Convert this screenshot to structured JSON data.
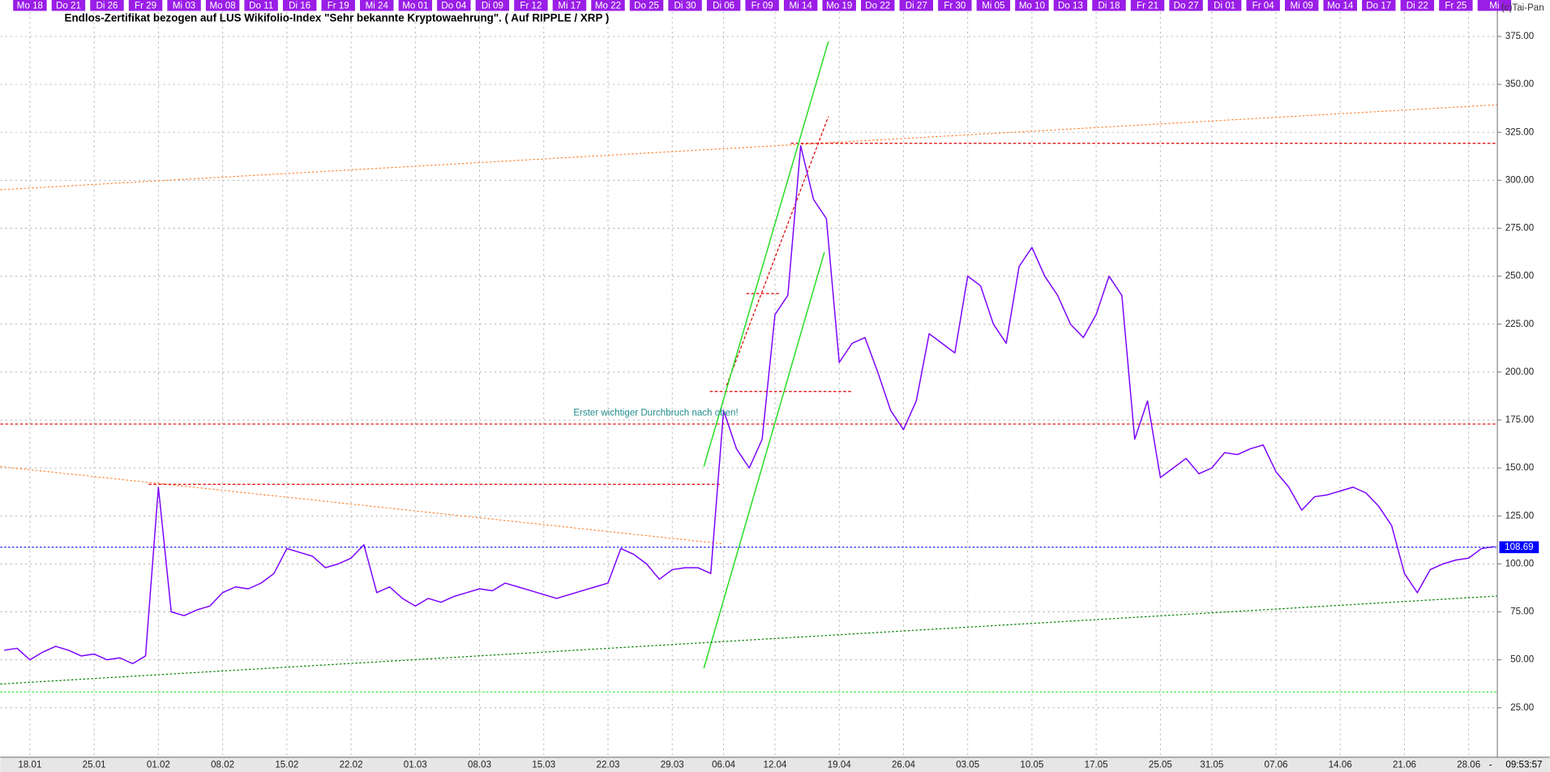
{
  "chart_data": {
    "type": "line",
    "title": "Endlos-Zertifikat bezogen auf LUS Wikifolio-Index \"Sehr bekannte Kryptowaehrung\". ( Auf RIPPLE / XRP )",
    "annotation": "Erster wichtiger Durchbruch nach oben!",
    "copyright": "(c)Tai-Pan",
    "clock_separator": "-",
    "clock": "09:53:57",
    "color": "#7b00ff",
    "grid": true,
    "ylim": [
      0,
      394
    ],
    "yticks": [
      {
        "value": 25,
        "label": "25.00"
      },
      {
        "value": 50,
        "label": "50.00"
      },
      {
        "value": 75,
        "label": "75.00"
      },
      {
        "value": 100,
        "label": "100.00"
      },
      {
        "value": 125,
        "label": "125.00"
      },
      {
        "value": 150,
        "label": "150.00"
      },
      {
        "value": 175,
        "label": "175.00"
      },
      {
        "value": 200,
        "label": "200.00"
      },
      {
        "value": 225,
        "label": "225.00"
      },
      {
        "value": 250,
        "label": "250.00"
      },
      {
        "value": 275,
        "label": "275.00"
      },
      {
        "value": 300,
        "label": "300.00"
      },
      {
        "value": 325,
        "label": "325.00"
      },
      {
        "value": 350,
        "label": "350.00"
      },
      {
        "value": 375,
        "label": "375.00"
      }
    ],
    "last_value": 108.69,
    "last_value_color": "#0000ff",
    "categories": [
      null,
      null,
      "18.01",
      null,
      null,
      null,
      null,
      "25.01",
      null,
      null,
      null,
      null,
      "01.02",
      null,
      null,
      null,
      null,
      "08.02",
      null,
      null,
      null,
      null,
      "15.02",
      null,
      null,
      null,
      null,
      "22.02",
      null,
      null,
      null,
      null,
      "01.03",
      null,
      null,
      null,
      null,
      "08.03",
      null,
      null,
      null,
      null,
      "15.03",
      null,
      null,
      null,
      null,
      "22.03",
      null,
      null,
      null,
      null,
      "29.03",
      null,
      null,
      null,
      "06.04",
      null,
      null,
      null,
      "12.04",
      null,
      null,
      null,
      null,
      "19.04",
      null,
      null,
      null,
      null,
      "26.04",
      null,
      null,
      null,
      null,
      "03.05",
      null,
      null,
      null,
      null,
      "10.05",
      null,
      null,
      null,
      null,
      "17.05",
      null,
      null,
      null,
      null,
      "25.05",
      null,
      null,
      null,
      "31.05",
      null,
      null,
      null,
      null,
      "07.06",
      null,
      null,
      null,
      null,
      "14.06",
      null,
      null,
      null,
      null,
      "21.06",
      null,
      null,
      null,
      null,
      "28.06",
      null,
      null
    ],
    "top_labels": [
      null,
      null,
      "Mo 18",
      null,
      null,
      "Do 21",
      null,
      null,
      "Di 26",
      null,
      null,
      "Fr 29",
      null,
      null,
      "Mi 03",
      null,
      null,
      "Mo 08",
      null,
      null,
      "Do 11",
      null,
      null,
      "Di 16",
      null,
      null,
      "Fr 19",
      null,
      null,
      "Mi 24",
      null,
      null,
      "Mo 01",
      null,
      null,
      "Do 04",
      null,
      null,
      "Di 09",
      null,
      null,
      "Fr 12",
      null,
      null,
      "Mi 17",
      null,
      null,
      "Mo 22",
      null,
      null,
      "Do 25",
      null,
      null,
      "Di 30",
      null,
      null,
      "Di 06",
      null,
      null,
      "Fr 09",
      null,
      null,
      "Mi 14",
      null,
      null,
      "Mo 19",
      null,
      null,
      "Do 22",
      null,
      null,
      "Di 27",
      null,
      null,
      "Fr 30",
      null,
      null,
      "Mi 05",
      null,
      null,
      "Mo 10",
      null,
      null,
      "Do 13",
      null,
      null,
      "Di 18",
      null,
      null,
      "Fr 21",
      null,
      null,
      "Do 27",
      null,
      null,
      "Di 01",
      null,
      null,
      "Fr 04",
      null,
      null,
      "Mi 09",
      null,
      null,
      "Mo 14",
      null,
      null,
      "Do 17",
      null,
      null,
      "Di 22",
      null,
      null,
      "Fr 25",
      null,
      null,
      "Mi"
    ],
    "values": [
      55,
      56,
      50,
      54,
      57,
      55,
      52,
      53,
      50,
      51,
      48,
      52,
      140,
      75,
      73,
      76,
      78,
      85,
      88,
      87,
      90,
      95,
      108,
      106,
      104,
      98,
      100,
      103,
      110,
      85,
      88,
      82,
      78,
      82,
      80,
      83,
      85,
      87,
      86,
      90,
      88,
      86,
      84,
      82,
      84,
      86,
      88,
      90,
      108,
      105,
      100,
      92,
      97,
      98,
      98,
      95,
      180,
      160,
      150,
      165,
      230,
      240,
      318,
      290,
      280,
      205,
      215,
      218,
      200,
      180,
      170,
      185,
      220,
      215,
      210,
      250,
      245,
      225,
      215,
      255,
      265,
      250,
      240,
      225,
      218,
      230,
      250,
      240,
      165,
      185,
      145,
      150,
      155,
      147,
      150,
      158,
      157,
      160,
      162,
      148,
      140,
      128,
      135,
      136,
      138,
      140,
      137,
      130,
      120,
      95,
      85,
      97,
      100,
      102,
      103,
      108,
      109
    ]
  }
}
